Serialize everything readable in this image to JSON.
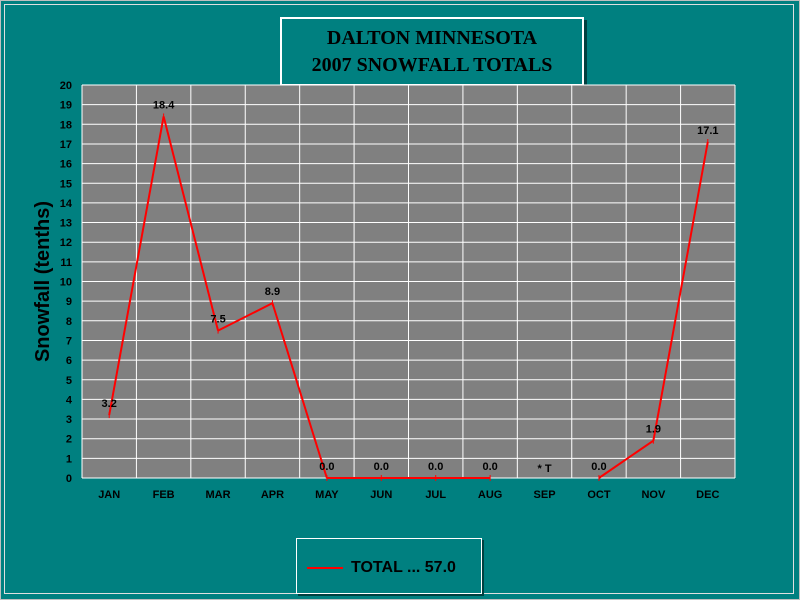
{
  "title_lines": [
    "DALTON MINNESOTA",
    "2007 SNOWFALL TOTALS"
  ],
  "legend_label": "TOTAL ... 57.0",
  "colors": {
    "background": "#008080",
    "plot_area": "#808080",
    "grid": "#ffffff",
    "series": "#ff0000"
  },
  "chart_data": {
    "type": "line",
    "title": "DALTON MINNESOTA 2007 SNOWFALL TOTALS",
    "xlabel": "",
    "ylabel": "Snowfall (tenths)",
    "ylim": [
      0,
      20
    ],
    "yticks": [
      0,
      1,
      2,
      3,
      4,
      5,
      6,
      7,
      8,
      9,
      10,
      11,
      12,
      13,
      14,
      15,
      16,
      17,
      18,
      19,
      20
    ],
    "grid": true,
    "legend_placement": "bottom-center",
    "categories": [
      "JAN",
      "FEB",
      "MAR",
      "APR",
      "MAY",
      "JUN",
      "JUL",
      "AUG",
      "SEP",
      "OCT",
      "NOV",
      "DEC"
    ],
    "series": [
      {
        "name": "TOTAL ... 57.0",
        "values": [
          3.2,
          18.4,
          7.5,
          8.9,
          0.0,
          0.0,
          0.0,
          0.0,
          null,
          0.0,
          1.9,
          17.1
        ],
        "data_labels": [
          "3.2",
          "18.4",
          "7.5",
          "8.9",
          "0.0",
          "0.0",
          "0.0",
          "0.0",
          "* T",
          "0.0",
          "1.9",
          "17.1"
        ]
      }
    ]
  }
}
